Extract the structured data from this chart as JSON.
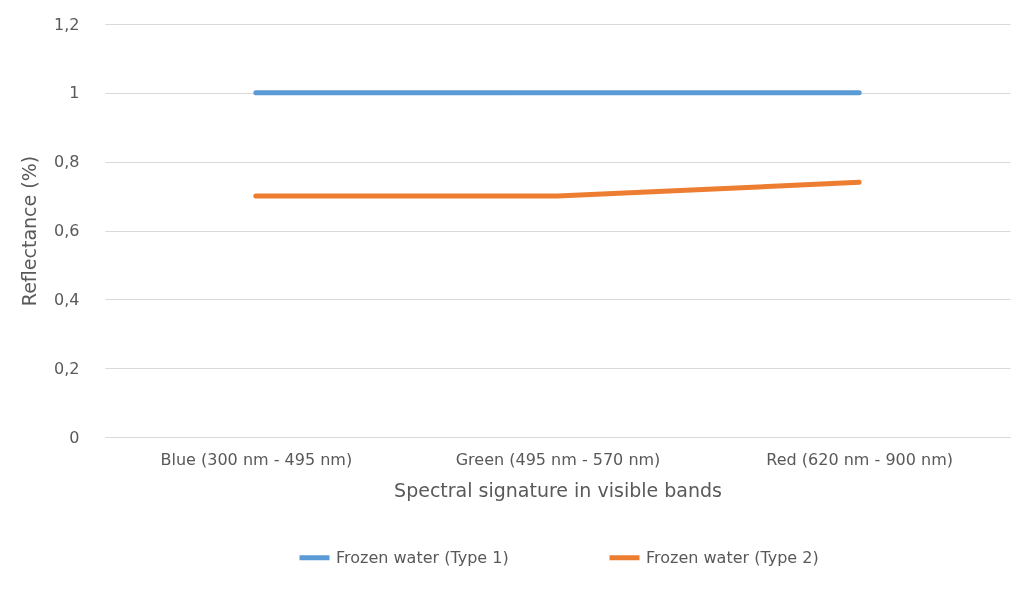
{
  "chart_data": {
    "type": "line",
    "xlabel": "Spectral signature in visible bands",
    "ylabel": "Reflectance (%)",
    "categories": [
      "Blue (300 nm - 495 nm)",
      "Green (495 nm - 570 nm)",
      "Red (620 nm - 900 nm)"
    ],
    "series": [
      {
        "name": "Frozen water (Type 1)",
        "color": "#5b9bd5",
        "values": [
          1,
          1,
          1
        ]
      },
      {
        "name": "Frozen water (Type 2)",
        "color": "#ed7d31",
        "values": [
          0.7,
          0.7,
          0.74
        ]
      }
    ],
    "ylim": [
      0,
      1.2
    ],
    "yticks": [
      0,
      {
        "value": 0.2,
        "label": "0,2"
      },
      {
        "value": 0.4,
        "label": "0,4"
      },
      {
        "value": 0.6,
        "label": "0,6"
      },
      {
        "value": 0.8,
        "label": "0,8"
      },
      1,
      {
        "value": 1.2,
        "label": "1,2"
      }
    ],
    "grid": "y",
    "legend": "bottom",
    "marker": "none",
    "line_style": "solid"
  }
}
